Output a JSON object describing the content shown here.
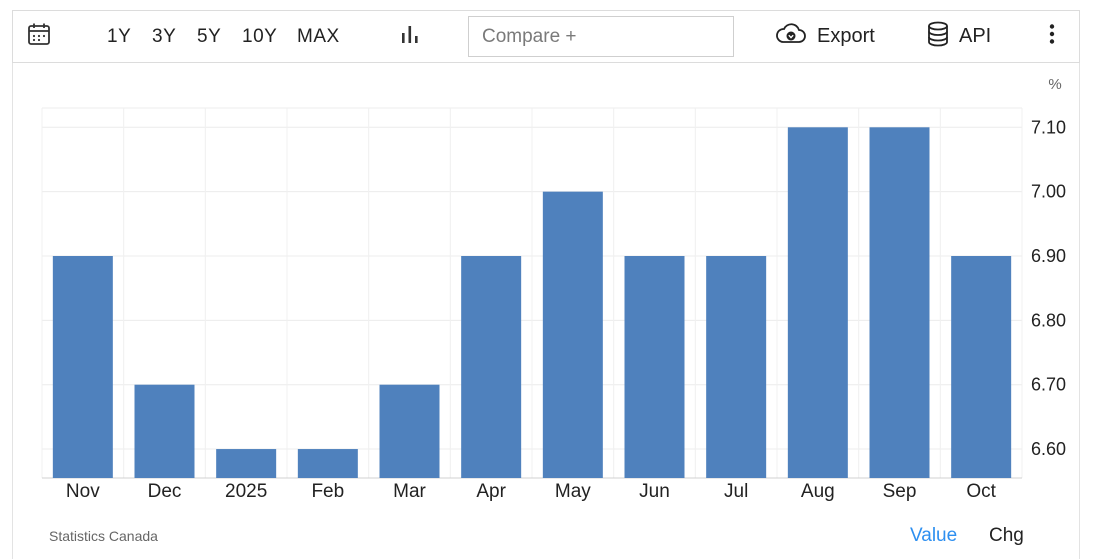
{
  "toolbar": {
    "ranges": [
      "1Y",
      "3Y",
      "5Y",
      "10Y",
      "MAX"
    ],
    "compare_placeholder": "Compare +",
    "export_label": "Export",
    "api_label": "API",
    "icons": {
      "calendar": "calendar-icon",
      "chart_type": "bar-chart-icon",
      "export": "cloud-download-icon",
      "api": "database-icon",
      "more": "more-vertical-icon"
    }
  },
  "chart_data": {
    "type": "bar",
    "categories": [
      "Nov",
      "Dec",
      "2025",
      "Feb",
      "Mar",
      "Apr",
      "May",
      "Jun",
      "Jul",
      "Aug",
      "Sep",
      "Oct"
    ],
    "values": [
      6.9,
      6.7,
      6.6,
      6.6,
      6.7,
      6.9,
      7.0,
      6.9,
      6.9,
      7.1,
      7.1,
      6.9
    ],
    "unit": "%",
    "y_ticks": [
      "6.60",
      "6.70",
      "6.80",
      "6.90",
      "7.00",
      "7.10"
    ],
    "ylim": [
      6.555,
      7.13
    ],
    "bar_color": "#4f81bd",
    "grid": true,
    "y_axis_side": "right"
  },
  "footer": {
    "source": "Statistics Canada",
    "value_label": "Value",
    "chg_label": "Chg",
    "value_color": "#2d8ff0"
  }
}
